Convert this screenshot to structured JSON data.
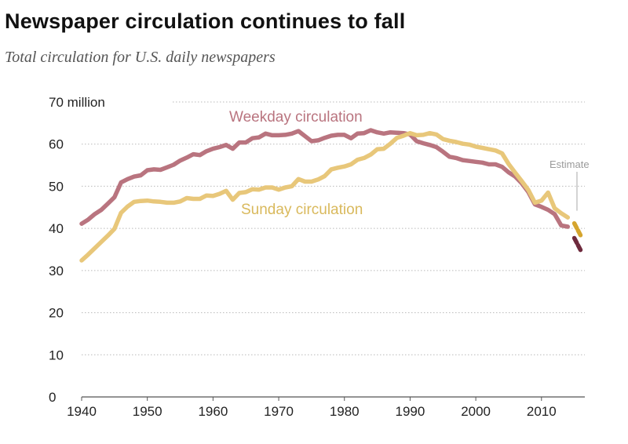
{
  "title": "Newspaper circulation continues to fall",
  "subtitle": "Total circulation for U.S. daily newspapers",
  "chart_data": {
    "type": "line",
    "ylim": [
      0,
      70
    ],
    "xlim": [
      1940,
      2016
    ],
    "y_ticks": [
      "0",
      "10",
      "20",
      "30",
      "40",
      "50",
      "60",
      "70 million"
    ],
    "x_ticks": [
      "1940",
      "1950",
      "1960",
      "1970",
      "1980",
      "1990",
      "2000",
      "2010"
    ],
    "annotation": "Estimate",
    "series": [
      {
        "name": "Weekday circulation",
        "color": "#b9747f",
        "estimate_color": "#6e2a3d",
        "x": [
          1940,
          1941,
          1942,
          1943,
          1944,
          1945,
          1946,
          1947,
          1948,
          1949,
          1950,
          1951,
          1952,
          1953,
          1954,
          1955,
          1956,
          1957,
          1958,
          1959,
          1960,
          1961,
          1962,
          1963,
          1964,
          1965,
          1966,
          1967,
          1968,
          1969,
          1970,
          1971,
          1972,
          1973,
          1974,
          1975,
          1976,
          1977,
          1978,
          1979,
          1980,
          1981,
          1982,
          1983,
          1984,
          1985,
          1986,
          1987,
          1988,
          1989,
          1990,
          1991,
          1992,
          1993,
          1994,
          1995,
          1996,
          1997,
          1998,
          1999,
          2000,
          2001,
          2002,
          2003,
          2004,
          2005,
          2006,
          2007,
          2008,
          2009,
          2010,
          2011,
          2012,
          2013,
          2014
        ],
        "values": [
          41.1,
          42.1,
          43.4,
          44.4,
          45.9,
          47.4,
          50.9,
          51.7,
          52.3,
          52.6,
          53.8,
          54.0,
          53.9,
          54.5,
          55.1,
          56.1,
          56.8,
          57.6,
          57.4,
          58.3,
          58.9,
          59.3,
          59.8,
          58.9,
          60.4,
          60.4,
          61.4,
          61.6,
          62.5,
          62.1,
          62.1,
          62.2,
          62.5,
          63.1,
          61.9,
          60.7,
          60.9,
          61.5,
          62.0,
          62.2,
          62.2,
          61.4,
          62.5,
          62.6,
          63.3,
          62.8,
          62.5,
          62.8,
          62.7,
          62.6,
          62.3,
          60.7,
          60.2,
          59.8,
          59.3,
          58.2,
          57.0,
          56.7,
          56.2,
          56.0,
          55.8,
          55.6,
          55.2,
          55.2,
          54.6,
          53.3,
          52.3,
          50.7,
          48.6,
          45.7,
          45.1,
          44.4,
          43.4,
          40.7,
          40.4
        ],
        "estimate_x": [
          2015,
          2016
        ],
        "estimate_values": [
          37.7,
          34.7
        ]
      },
      {
        "name": "Sunday circulation",
        "color": "#e8c77a",
        "estimate_color": "#d5a52e",
        "x": [
          1940,
          1941,
          1942,
          1943,
          1944,
          1945,
          1946,
          1947,
          1948,
          1949,
          1950,
          1951,
          1952,
          1953,
          1954,
          1955,
          1956,
          1957,
          1958,
          1959,
          1960,
          1961,
          1962,
          1963,
          1964,
          1965,
          1966,
          1967,
          1968,
          1969,
          1970,
          1971,
          1972,
          1973,
          1974,
          1975,
          1976,
          1977,
          1978,
          1979,
          1980,
          1981,
          1982,
          1983,
          1984,
          1985,
          1986,
          1987,
          1988,
          1989,
          1990,
          1991,
          1992,
          1993,
          1994,
          1995,
          1996,
          1997,
          1998,
          1999,
          2000,
          2001,
          2002,
          2003,
          2004,
          2005,
          2006,
          2007,
          2008,
          2009,
          2010,
          2011,
          2012,
          2013,
          2014
        ],
        "values": [
          32.4,
          33.8,
          35.3,
          36.8,
          38.3,
          39.9,
          43.7,
          45.2,
          46.3,
          46.5,
          46.6,
          46.4,
          46.3,
          46.1,
          46.1,
          46.4,
          47.2,
          47.0,
          47.0,
          47.8,
          47.7,
          48.2,
          48.9,
          46.8,
          48.4,
          48.6,
          49.3,
          49.2,
          49.7,
          49.7,
          49.2,
          49.7,
          50.0,
          51.7,
          51.1,
          51.1,
          51.6,
          52.4,
          54.0,
          54.4,
          54.7,
          55.2,
          56.3,
          56.7,
          57.5,
          58.8,
          58.9,
          60.1,
          61.5,
          62.0,
          62.6,
          62.1,
          62.2,
          62.6,
          62.3,
          61.2,
          60.8,
          60.5,
          60.1,
          59.9,
          59.4,
          59.1,
          58.8,
          58.5,
          57.8,
          55.3,
          53.2,
          51.2,
          49.1,
          46.1,
          46.6,
          48.5,
          44.8,
          43.6,
          42.6
        ],
        "estimate_x": [
          2015,
          2016
        ],
        "estimate_values": [
          41.2,
          38.2
        ]
      }
    ]
  }
}
